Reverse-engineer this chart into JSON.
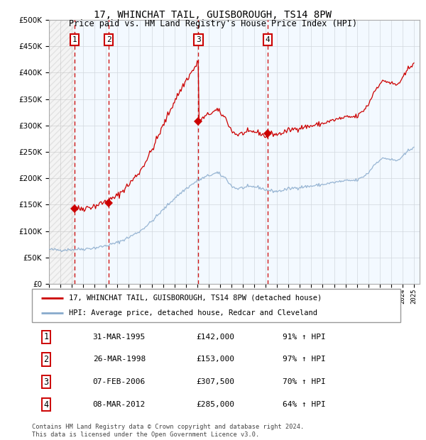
{
  "title": "17, WHINCHAT TAIL, GUISBOROUGH, TS14 8PW",
  "subtitle": "Price paid vs. HM Land Registry's House Price Index (HPI)",
  "footer": "Contains HM Land Registry data © Crown copyright and database right 2024.\nThis data is licensed under the Open Government Licence v3.0.",
  "legend_line1": "17, WHINCHAT TAIL, GUISBOROUGH, TS14 8PW (detached house)",
  "legend_line2": "HPI: Average price, detached house, Redcar and Cleveland",
  "sale_color": "#cc0000",
  "hpi_color": "#88aacc",
  "vline_color": "#cc0000",
  "grid_color": "#cccccc",
  "ylim": [
    0,
    500000
  ],
  "yticks": [
    0,
    50000,
    100000,
    150000,
    200000,
    250000,
    300000,
    350000,
    400000,
    450000,
    500000
  ],
  "ytick_labels": [
    "£0",
    "£50K",
    "£100K",
    "£150K",
    "£200K",
    "£250K",
    "£300K",
    "£350K",
    "£400K",
    "£450K",
    "£500K"
  ],
  "xlim_start": 1993.0,
  "xlim_end": 2025.5,
  "sales": [
    {
      "date": 1995.24,
      "price": 142000,
      "label": "1"
    },
    {
      "date": 1998.23,
      "price": 153000,
      "label": "2"
    },
    {
      "date": 2006.1,
      "price": 307500,
      "label": "3"
    },
    {
      "date": 2012.18,
      "price": 285000,
      "label": "4"
    }
  ],
  "table_rows": [
    [
      "1",
      "31-MAR-1995",
      "£142,000",
      "91% ↑ HPI"
    ],
    [
      "2",
      "26-MAR-1998",
      "£153,000",
      "97% ↑ HPI"
    ],
    [
      "3",
      "07-FEB-2006",
      "£307,500",
      "70% ↑ HPI"
    ],
    [
      "4",
      "08-MAR-2012",
      "£285,000",
      "64% ↑ HPI"
    ]
  ]
}
